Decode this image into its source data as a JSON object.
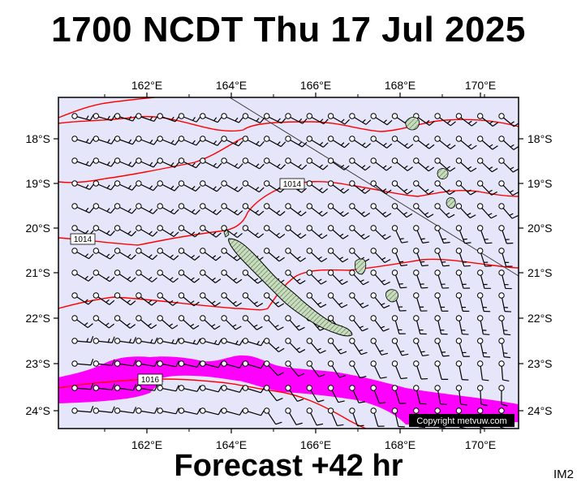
{
  "title": "1700 NCDT Thu 17 Jul 2025",
  "subtitle": "Forecast +42 hr",
  "image_code": "IM2",
  "copyright": "Copyright metvuw.com",
  "map": {
    "lon_range": [
      160.0,
      170.9
    ],
    "lat_range": [
      -17.0,
      -24.4
    ],
    "lon_ticks": [
      "162°E",
      "164°E",
      "166°E",
      "168°E",
      "170°E"
    ],
    "lat_ticks": [
      "18°S",
      "19°S",
      "20°S",
      "21°S",
      "22°S",
      "23°S",
      "24°S"
    ],
    "ocean_color": "#e6e6fa",
    "isobar_color": "#ff0000",
    "rain_color": "#ff00ff",
    "land_color": "#c9dcc0",
    "isobar_labels": [
      "1014",
      "1014",
      "1016"
    ]
  }
}
